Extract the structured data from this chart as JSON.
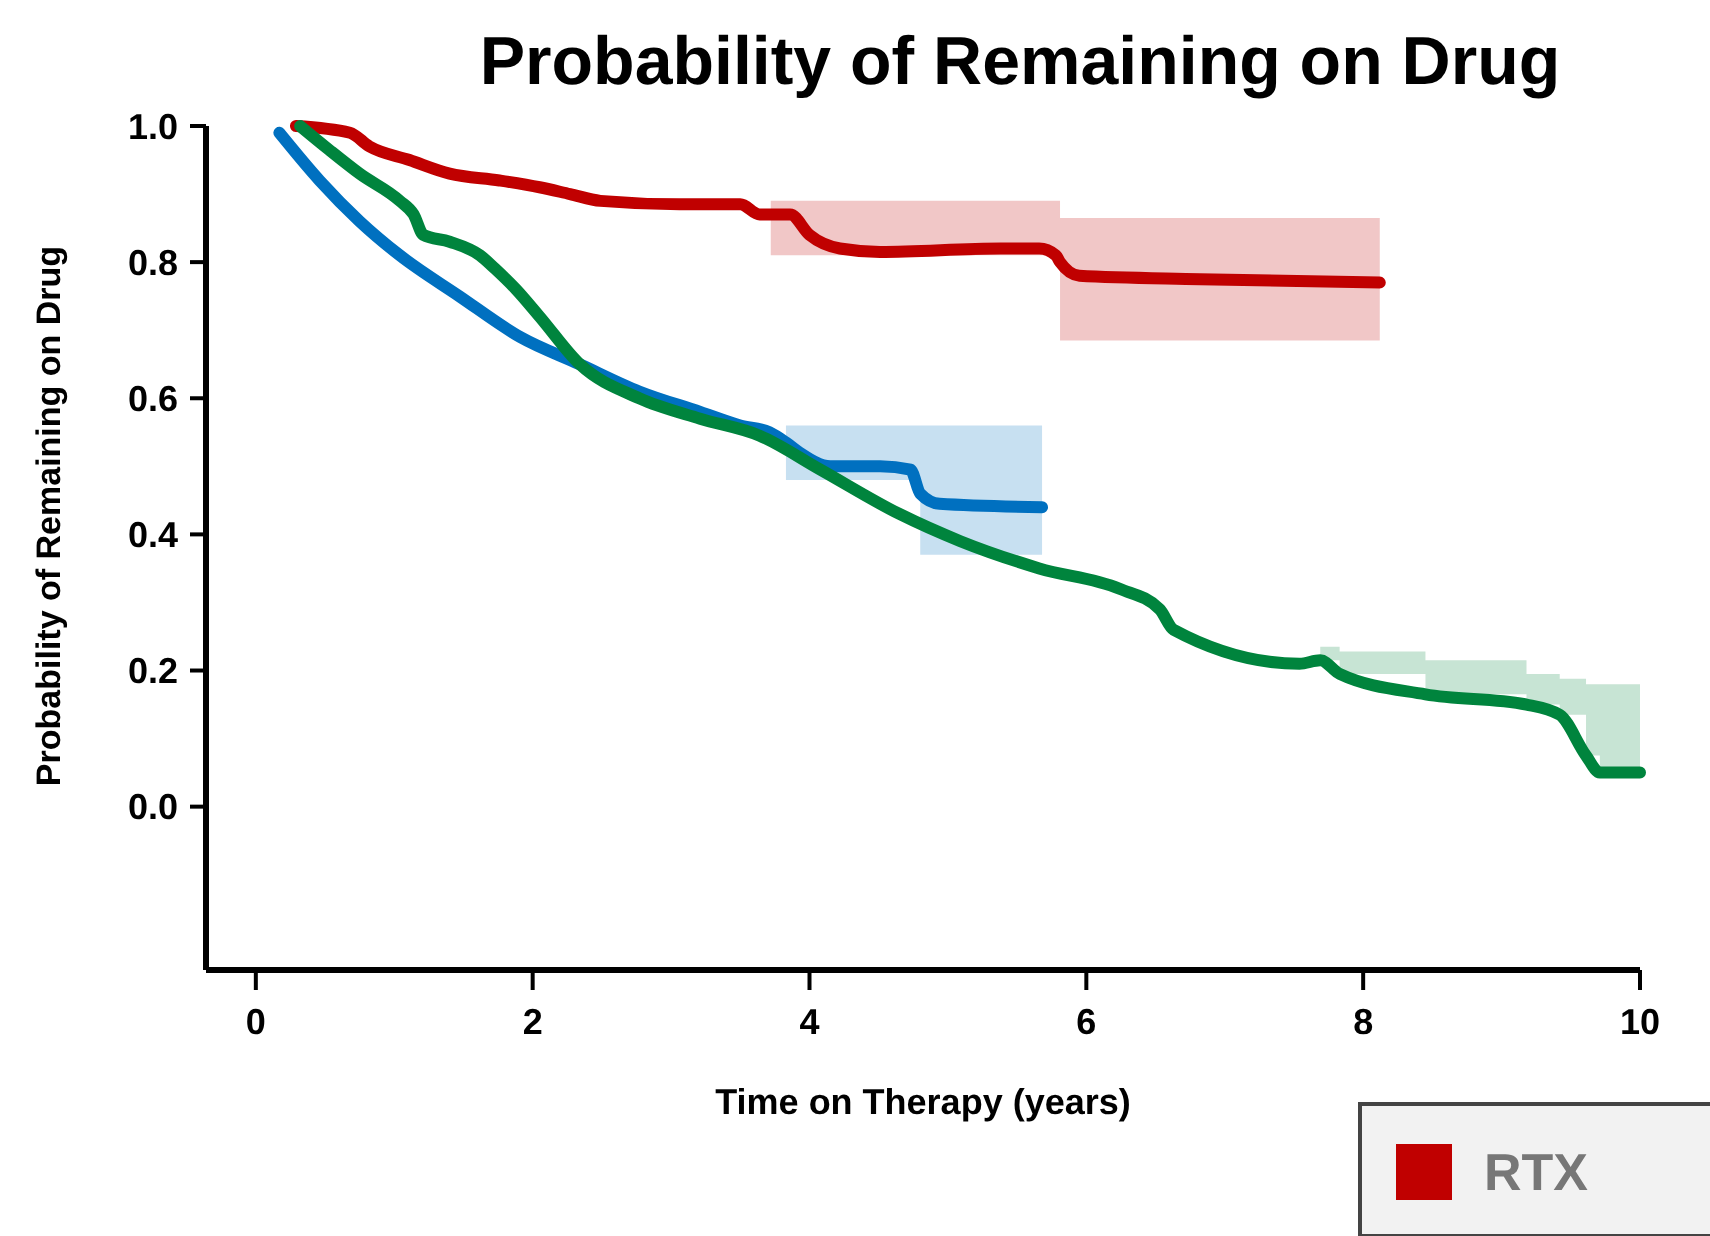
{
  "chart_data": {
    "type": "line",
    "title": "Probability of Remaining on Drug",
    "xlabel": "Time on Therapy (years)",
    "ylabel": "Probability of Remaining on Drug",
    "xlim": [
      -0.36,
      10
    ],
    "ylim": [
      -0.24,
      1.0
    ],
    "xticks": [
      0,
      2,
      4,
      6,
      8,
      10
    ],
    "yticks": [
      {
        "value": 0,
        "label": "0.0"
      },
      {
        "value": 0.2,
        "label": "0.2"
      },
      {
        "value": 0.4,
        "label": "0.4"
      },
      {
        "value": 0.6,
        "label": "0.6"
      },
      {
        "value": 0.8,
        "label": "0.8"
      },
      {
        "value": 1,
        "label": "1.0"
      }
    ],
    "grid": false,
    "legend": "bottom right",
    "marker": "none",
    "line_style": "solid",
    "series": [
      {
        "name": "RTX",
        "color": "#c00000",
        "x": [
          0.29,
          0.68,
          0.82,
          1.11,
          1.4,
          1.76,
          2.05,
          2.27,
          2.49,
          3.06,
          3.5,
          3.64,
          3.72,
          3.86,
          4.0,
          4.22,
          4.51,
          5.38,
          5.66,
          5.78,
          5.81,
          5.95,
          6.82,
          8.12
        ],
        "values": [
          1.0,
          0.99,
          0.97,
          0.95,
          0.93,
          0.92,
          0.91,
          0.9,
          0.89,
          0.885,
          0.885,
          0.87,
          0.87,
          0.87,
          0.84,
          0.82,
          0.815,
          0.82,
          0.82,
          0.81,
          0.8,
          0.78,
          0.775,
          0.77
        ],
        "lower": [
          null,
          null,
          null,
          null,
          null,
          null,
          null,
          null,
          null,
          null,
          null,
          null,
          0.81,
          0.81,
          0.81,
          0.81,
          0.81,
          0.81,
          0.81,
          0.81,
          0.685,
          0.685,
          0.685,
          0.685
        ],
        "upper": [
          null,
          null,
          null,
          null,
          null,
          null,
          null,
          null,
          null,
          null,
          null,
          null,
          0.89,
          0.89,
          0.89,
          0.89,
          0.89,
          0.89,
          0.89,
          0.89,
          0.865,
          0.865,
          0.865,
          0.865
        ]
      },
      {
        "color": "#0070c0",
        "x": [
          0.17,
          0.46,
          0.75,
          1.04,
          1.47,
          1.91,
          2.34,
          2.77,
          3.21,
          3.5,
          3.71,
          3.83,
          3.93,
          4.15,
          4.51,
          4.73,
          4.8,
          4.94,
          5.68
        ],
        "values": [
          0.99,
          0.92,
          0.86,
          0.81,
          0.75,
          0.69,
          0.65,
          0.61,
          0.58,
          0.56,
          0.55,
          0.535,
          0.52,
          0.5,
          0.5,
          0.495,
          0.46,
          0.445,
          0.44
        ],
        "lower": [
          null,
          null,
          null,
          null,
          null,
          null,
          null,
          null,
          null,
          null,
          null,
          0.48,
          0.48,
          0.48,
          0.48,
          0.48,
          0.37,
          0.37,
          0.37
        ],
        "upper": [
          null,
          null,
          null,
          null,
          null,
          null,
          null,
          null,
          null,
          null,
          null,
          0.56,
          0.56,
          0.56,
          0.56,
          0.56,
          0.56,
          0.56,
          0.56
        ]
      },
      {
        "color": "#00843d",
        "x": [
          0.32,
          0.53,
          0.75,
          1.04,
          1.14,
          1.21,
          1.4,
          1.62,
          1.73,
          1.88,
          2.05,
          2.34,
          2.77,
          3.21,
          3.64,
          4.08,
          4.65,
          5.09,
          5.66,
          6.24,
          6.53,
          6.63,
          7.54,
          7.69,
          7.83,
          8.45,
          9.18,
          9.42,
          9.61,
          9.71,
          10.0
        ],
        "values": [
          1.0,
          0.965,
          0.93,
          0.89,
          0.87,
          0.84,
          0.83,
          0.81,
          0.79,
          0.76,
          0.72,
          0.65,
          0.6,
          0.57,
          0.545,
          0.495,
          0.43,
          0.39,
          0.35,
          0.32,
          0.29,
          0.26,
          0.21,
          0.215,
          0.195,
          0.165,
          0.15,
          0.135,
          0.075,
          0.05,
          0.05
        ],
        "lower": [
          null,
          null,
          null,
          null,
          null,
          null,
          null,
          null,
          null,
          null,
          null,
          null,
          null,
          null,
          null,
          null,
          null,
          null,
          null,
          null,
          null,
          null,
          null,
          0.215,
          0.195,
          0.165,
          0.15,
          0.135,
          0.075,
          0.05,
          0.05
        ],
        "upper": [
          null,
          null,
          null,
          null,
          null,
          null,
          null,
          null,
          null,
          null,
          null,
          null,
          null,
          null,
          null,
          null,
          null,
          null,
          null,
          null,
          null,
          null,
          null,
          0.235,
          0.228,
          0.215,
          0.195,
          0.188,
          0.18,
          0.18,
          0.18
        ]
      }
    ]
  }
}
